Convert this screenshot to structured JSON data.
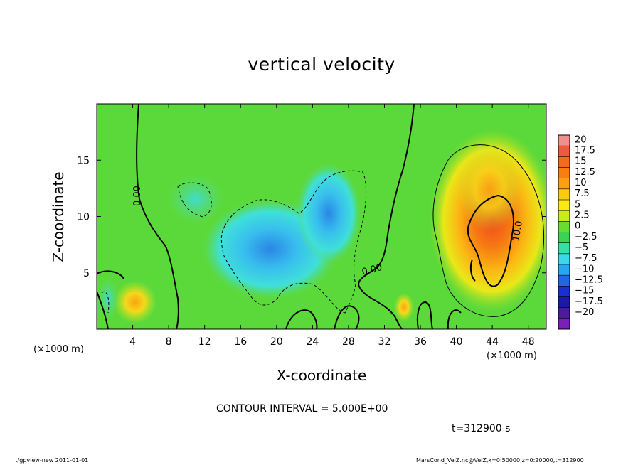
{
  "page": {
    "footer_left": "./gpview-new  2011-01-01",
    "footer_right": "MarsCond_VelZ.nc@VelZ,x=0:50000,z=0:20000,t=312900"
  },
  "chart_data": {
    "type": "heatmap",
    "title": "vertical velocity",
    "xlabel": "X-coordinate",
    "ylabel": "Z-coordinate",
    "x_multiplier_label": "(×1000 m)",
    "xlim": [
      0,
      50
    ],
    "ylim": [
      0,
      20
    ],
    "x_ticks": [
      4,
      8,
      12,
      16,
      20,
      24,
      28,
      32,
      36,
      40,
      44,
      48
    ],
    "y_ticks": [
      5,
      10,
      15
    ],
    "contour_interval_text": "CONTOUR INTERVAL = 5.000E+00",
    "time_text": "t=312900 s",
    "contour_labels": [
      "0.00",
      "0.00",
      "10.0"
    ],
    "colorbar": {
      "labels": [
        "20",
        "17.5",
        "15",
        "12.5",
        "10",
        "7.5",
        "5",
        "2.5",
        "0",
        "-2.5",
        "-5",
        "-7.5",
        "-10",
        "-12.5",
        "-15",
        "-17.5",
        "-20"
      ],
      "colors": [
        "#f08f8f",
        "#f05a3c",
        "#f56a1e",
        "#f87e10",
        "#fba010",
        "#fbcb10",
        "#fbe915",
        "#c9ea1e",
        "#68dd30",
        "#3ad356",
        "#34e0a8",
        "#3ad8e8",
        "#2aa5ef",
        "#2266e6",
        "#1a2fcf",
        "#1a1aa6",
        "#4b1a9f",
        "#7a20b8"
      ]
    },
    "features": [
      {
        "kind": "updraft",
        "x_center": 44.5,
        "z_center": 7.5,
        "peak": 12.5
      },
      {
        "kind": "updraft",
        "x_center": 4.2,
        "z_center": 2.3,
        "peak": 7.5
      },
      {
        "kind": "updraft",
        "x_center": 33.5,
        "z_center": 1.8,
        "peak": 5
      },
      {
        "kind": "downdraft",
        "x_center": 18.5,
        "z_center": 6.5,
        "peak": -10
      },
      {
        "kind": "downdraft",
        "x_center": 26,
        "z_center": 9.5,
        "peak": -7.5
      },
      {
        "kind": "downdraft",
        "x_center": 11,
        "z_center": 12,
        "peak": -5
      }
    ]
  }
}
